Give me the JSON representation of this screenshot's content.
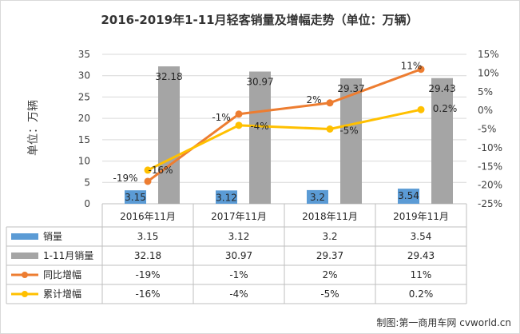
{
  "chart_data": {
    "type": "bar",
    "title": "2016-2019年1-11月轻客销量及增幅走势（单位：万辆）",
    "ylabel": "单位：万辆",
    "categories": [
      "2016年11月",
      "2017年11月",
      "2018年11月",
      "2019年11月"
    ],
    "y_left": {
      "min": 0,
      "max": 35,
      "step": 5,
      "ticks": [
        "0",
        "5",
        "10",
        "15",
        "20",
        "25",
        "30",
        "35"
      ]
    },
    "y_right": {
      "min": -25,
      "max": 15,
      "step": 5,
      "ticks": [
        "-25%",
        "-20%",
        "-15%",
        "-10%",
        "-5%",
        "0%",
        "5%",
        "10%",
        "15%"
      ]
    },
    "grid": true,
    "legend": "data-table",
    "series": [
      {
        "name": "销量",
        "kind": "bar",
        "axis": "left",
        "color": "#5b9bd5",
        "values": [
          3.15,
          3.12,
          3.2,
          3.54
        ],
        "labels": [
          "3.15",
          "3.12",
          "3.2",
          "3.54"
        ]
      },
      {
        "name": "1-11月销量",
        "kind": "bar",
        "axis": "left",
        "color": "#a5a5a5",
        "values": [
          32.18,
          30.97,
          29.37,
          29.43
        ],
        "labels": [
          "32.18",
          "30.97",
          "29.37",
          "29.43"
        ]
      },
      {
        "name": "同比增幅",
        "kind": "line",
        "axis": "right",
        "color": "#ed7d31",
        "values": [
          -19,
          -1,
          2,
          11
        ],
        "labels": [
          "-19%",
          "-1%",
          "2%",
          "11%"
        ]
      },
      {
        "name": "累计增幅",
        "kind": "line",
        "axis": "right",
        "color": "#ffc000",
        "values": [
          -16,
          -4,
          -5,
          0.2
        ],
        "labels": [
          "-16%",
          "-4%",
          "-5%",
          "0.2%"
        ]
      }
    ]
  },
  "credit": "制图:第一商用车网 cvworld.cn"
}
